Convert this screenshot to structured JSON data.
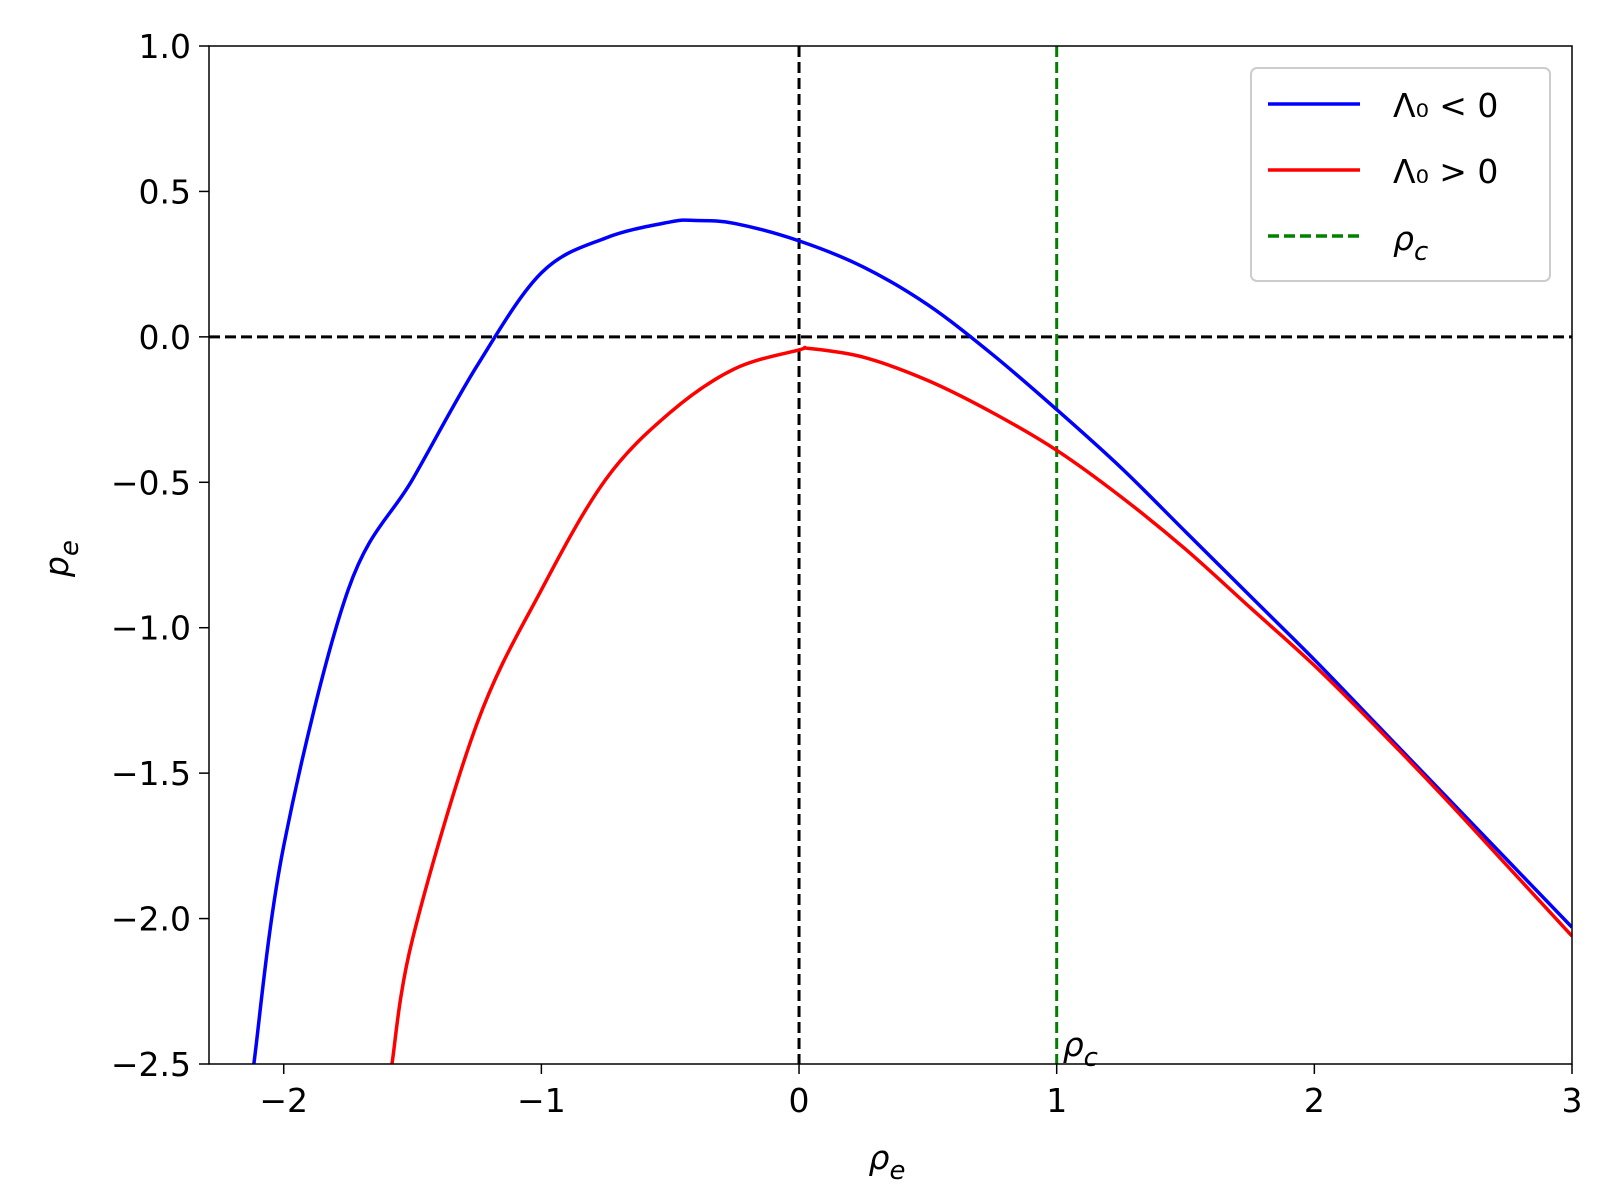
{
  "chart_data": {
    "type": "line",
    "xlabel": {
      "symbol": "ρ",
      "subscript": "e"
    },
    "ylabel": {
      "symbol": "p",
      "subscript": "e"
    },
    "xlim": [
      -2.29,
      3
    ],
    "ylim": [
      -2.5,
      1.0
    ],
    "xticks": [
      {
        "value": -2,
        "label": "−2"
      },
      {
        "value": -1,
        "label": "−1"
      },
      0,
      1,
      2,
      3
    ],
    "yticks": [
      {
        "value": 1.0,
        "label": "1.0"
      },
      {
        "value": 0.5,
        "label": "0.5"
      },
      {
        "value": 0.0,
        "label": "0.0"
      },
      {
        "value": -0.5,
        "label": "−0.5"
      },
      {
        "value": -1.0,
        "label": "−1.0"
      },
      {
        "value": -1.5,
        "label": "−1.5"
      },
      {
        "value": -2.0,
        "label": "−2.0"
      },
      {
        "value": -2.5,
        "label": "−2.5"
      }
    ],
    "legend": "upper right",
    "series": [
      {
        "name": "Λ₀ < 0",
        "color": "#0000ff",
        "x": [
          -2.116,
          -2,
          -1.75,
          -1.5,
          -1.25,
          -1,
          -0.75,
          -0.5,
          -0.4,
          -0.25,
          0,
          0.25,
          0.5,
          0.75,
          1,
          1.25,
          1.5,
          1.75,
          2,
          2.25,
          2.5,
          2.75,
          3
        ],
        "values": [
          -2.5,
          -1.75,
          -0.87,
          -0.49,
          -0.1,
          0.22,
          0.34,
          0.395,
          0.4,
          0.39,
          0.33,
          0.24,
          0.11,
          -0.06,
          -0.25,
          -0.45,
          -0.67,
          -0.89,
          -1.11,
          -1.34,
          -1.57,
          -1.8,
          -2.03
        ]
      },
      {
        "name": "Λ₀ > 0",
        "color": "#ff0000",
        "x": [
          -1.58,
          -1.5,
          -1.25,
          -1,
          -0.75,
          -0.5,
          -0.25,
          0,
          0.04,
          0.25,
          0.5,
          0.75,
          1,
          1.25,
          1.5,
          1.75,
          2,
          2.25,
          2.5,
          2.75,
          3
        ],
        "values": [
          -2.5,
          -2.07,
          -1.33,
          -0.87,
          -0.49,
          -0.26,
          -0.11,
          -0.045,
          -0.04,
          -0.07,
          -0.15,
          -0.26,
          -0.39,
          -0.55,
          -0.73,
          -0.93,
          -1.13,
          -1.35,
          -1.58,
          -1.82,
          -2.06
        ]
      }
    ],
    "reference_lines": [
      {
        "orientation": "horizontal",
        "value": 0,
        "color": "#000000",
        "style": "dashed"
      },
      {
        "orientation": "vertical",
        "value": 0,
        "color": "#000000",
        "style": "dashed"
      },
      {
        "orientation": "vertical",
        "value": 1,
        "color": "#008000",
        "style": "dashed",
        "name": {
          "symbol": "ρ",
          "subscript": "c"
        }
      }
    ],
    "annotations": [
      {
        "x": 1,
        "y": -2.5,
        "text": {
          "symbol": "ρ",
          "subscript": "c"
        }
      }
    ]
  }
}
